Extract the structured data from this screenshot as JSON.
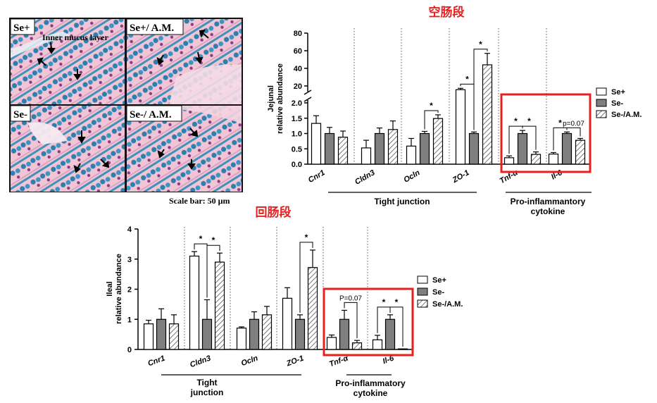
{
  "histology": {
    "panels": [
      "Se+",
      "Se+/ A.M.",
      "Se-",
      "Se-/ A.M."
    ],
    "annotation": "Inner mucus layer",
    "scale_bar": "Scale bar: 50 μm"
  },
  "colors": {
    "se_plus": "#ffffff",
    "se_minus": "#7f7f7f",
    "se_minus_am": "hatch",
    "highlight": "#e8201e",
    "title_red": "#e8201e",
    "stain_bg": "#f3c8d8",
    "stain_cell": "#2f87b5"
  },
  "chart_data": [
    {
      "type": "bar",
      "title": "空肠段",
      "ylabel": "Jejunal relative abundance",
      "yticks_lower": [
        "0.0",
        "0.5",
        "1.0",
        "1.5",
        "2.0"
      ],
      "yticks_upper": [
        "20",
        "40",
        "60",
        "80"
      ],
      "ylim_lower": [
        0,
        2.0
      ],
      "ylim_upper": [
        10,
        80
      ],
      "axis_break": true,
      "categories": [
        "Cnr1",
        "Cldn3",
        "Ocln",
        "ZO-1",
        "Tnf-α",
        "Il-6"
      ],
      "series": [
        {
          "name": "Se+",
          "values": [
            1.33,
            0.53,
            0.59,
            16.0,
            0.21,
            0.33
          ],
          "errors": [
            0.25,
            0.25,
            0.25,
            1.5,
            0.06,
            0.05
          ]
        },
        {
          "name": "Se-",
          "values": [
            1.0,
            1.0,
            1.0,
            1.0,
            1.0,
            1.0
          ],
          "errors": [
            0.2,
            0.18,
            0.07,
            0.05,
            0.1,
            0.05
          ]
        },
        {
          "name": "Se-/A.M.",
          "values": [
            0.88,
            1.13,
            1.49,
            44.0,
            0.32,
            0.78
          ],
          "errors": [
            0.2,
            0.28,
            0.12,
            13.0,
            0.08,
            0.06
          ]
        }
      ],
      "groups": [
        {
          "label": "Tight junction",
          "members": [
            "Cldn3",
            "Ocln",
            "ZO-1"
          ]
        },
        {
          "label": "Pro-inflammantory cytokine",
          "members": [
            "Tnf-α",
            "Il-6"
          ]
        }
      ],
      "significance": [
        {
          "category": "Ocln",
          "pair": [
            "Se-",
            "Se-/A.M."
          ],
          "label": "*"
        },
        {
          "category": "ZO-1",
          "pair": [
            "Se+",
            "Se-"
          ],
          "label": "*"
        },
        {
          "category": "ZO-1",
          "pair": [
            "Se-",
            "Se-/A.M."
          ],
          "label": "*"
        },
        {
          "category": "Tnf-α",
          "pair": [
            "Se+",
            "Se-"
          ],
          "label": "*"
        },
        {
          "category": "Tnf-α",
          "pair": [
            "Se-",
            "Se-/A.M."
          ],
          "label": "*"
        },
        {
          "category": "Il-6",
          "pair": [
            "Se+",
            "Se-"
          ],
          "label": "*"
        },
        {
          "category": "Il-6",
          "pair": [
            "Se-",
            "Se-/A.M."
          ],
          "label": "p=0.07"
        }
      ],
      "legend": [
        "Se+",
        "Se-",
        "Se-/A.M."
      ],
      "legend_position": "right",
      "highlighted": [
        "Tnf-α",
        "Il-6"
      ]
    },
    {
      "type": "bar",
      "title": "回肠段",
      "ylabel": "Ileal relative abundance",
      "yticks": [
        "0",
        "1",
        "2",
        "3",
        "4"
      ],
      "ylim": [
        0,
        4
      ],
      "categories": [
        "Cnr1",
        "Cldn3",
        "Ocln",
        "ZO-1",
        "Tnf-α",
        "Il-6"
      ],
      "series": [
        {
          "name": "Se+",
          "values": [
            0.85,
            3.1,
            0.71,
            1.7,
            0.4,
            0.32
          ],
          "errors": [
            0.12,
            0.15,
            0.04,
            0.35,
            0.08,
            0.15
          ]
        },
        {
          "name": "Se-",
          "values": [
            1.0,
            1.0,
            1.0,
            1.0,
            1.0,
            1.0
          ],
          "errors": [
            0.35,
            0.65,
            0.25,
            0.15,
            0.3,
            0.15
          ]
        },
        {
          "name": "Se-/A.M.",
          "values": [
            0.85,
            2.9,
            1.15,
            2.72,
            0.22,
            0.02
          ],
          "errors": [
            0.3,
            0.3,
            0.28,
            0.58,
            0.08,
            0.0
          ]
        }
      ],
      "groups": [
        {
          "label": "Tight junction",
          "members": [
            "Cldn3",
            "Ocln",
            "ZO-1"
          ]
        },
        {
          "label": "Pro-inflammatory cytokine",
          "members": [
            "Tnf-α",
            "Il-6"
          ]
        }
      ],
      "significance": [
        {
          "category": "Cldn3",
          "pair": [
            "Se+",
            "Se-"
          ],
          "label": "*"
        },
        {
          "category": "Cldn3",
          "pair": [
            "Se-",
            "Se-/A.M."
          ],
          "label": "*"
        },
        {
          "category": "ZO-1",
          "pair": [
            "Se-",
            "Se-/A.M."
          ],
          "label": "*"
        },
        {
          "category": "Tnf-α",
          "pair": [
            "Se-",
            "Se-/A.M."
          ],
          "label": "P=0.07"
        },
        {
          "category": "Il-6",
          "pair": [
            "Se+",
            "Se-"
          ],
          "label": "*"
        },
        {
          "category": "Il-6",
          "pair": [
            "Se-",
            "Se-/A.M."
          ],
          "label": "*"
        }
      ],
      "legend": [
        "Se+",
        "Se-",
        "Se-/A.M."
      ],
      "legend_position": "right",
      "highlighted": [
        "Tnf-α",
        "Il-6"
      ]
    }
  ]
}
